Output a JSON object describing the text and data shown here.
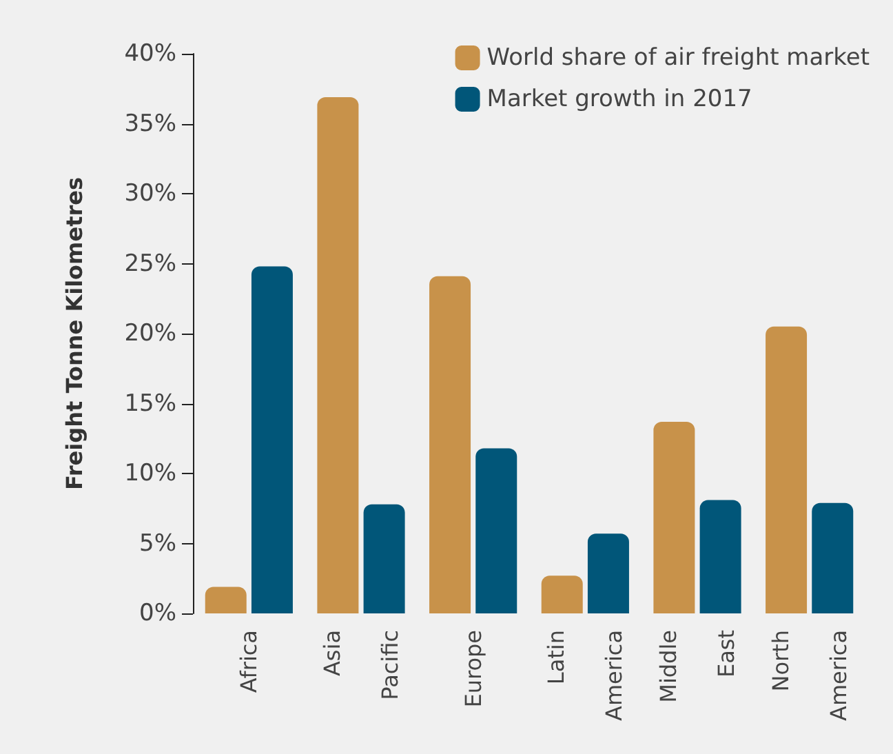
{
  "chart_data": {
    "type": "bar",
    "ylabel": "Freight Tonne Kilometres",
    "categories": [
      "Africa",
      "Asia Pacific",
      "Europe",
      "Latin America",
      "Middle East",
      "North America"
    ],
    "series": [
      {
        "name": "World share of air freight market",
        "color": "#c8924a",
        "values": [
          1.9,
          36.9,
          24.1,
          2.7,
          13.7,
          20.5
        ]
      },
      {
        "name": "Market growth in 2017",
        "color": "#015679",
        "values": [
          24.8,
          7.8,
          11.8,
          5.7,
          8.1,
          7.9
        ]
      }
    ],
    "ylim": [
      0,
      40
    ],
    "yticks": [
      {
        "value": 0,
        "label": "0%"
      },
      {
        "value": 5,
        "label": "5%"
      },
      {
        "value": 10,
        "label": "10%"
      },
      {
        "value": 15,
        "label": "15%"
      },
      {
        "value": 20,
        "label": "20%"
      },
      {
        "value": 25,
        "label": "25%"
      },
      {
        "value": 30,
        "label": "30%"
      },
      {
        "value": 35,
        "label": "35%"
      },
      {
        "value": 40,
        "label": "40%"
      }
    ],
    "grid": false,
    "legend": "top right"
  }
}
